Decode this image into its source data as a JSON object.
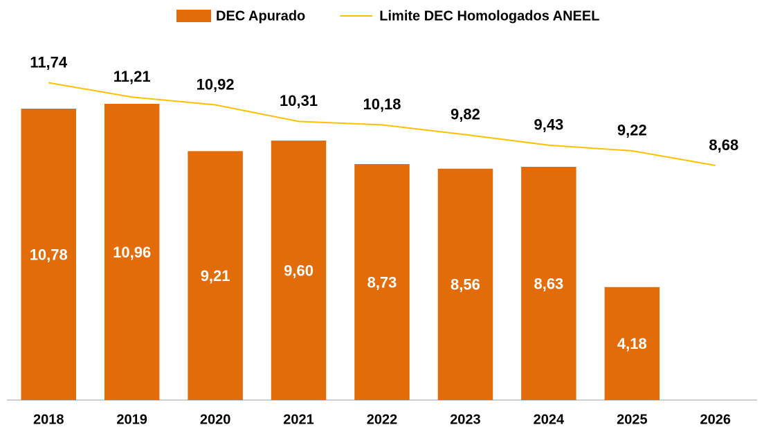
{
  "chart_data": {
    "type": "bar+line",
    "categories": [
      "2018",
      "2019",
      "2020",
      "2021",
      "2022",
      "2023",
      "2024",
      "2025",
      "2026"
    ],
    "series": [
      {
        "name": "DEC Apurado",
        "type": "bar",
        "color": "#e36c0a",
        "values": [
          10.78,
          10.96,
          9.21,
          9.6,
          8.73,
          8.56,
          8.63,
          4.18,
          null
        ],
        "value_labels": [
          "10,78",
          "10,96",
          "9,21",
          "9,60",
          "8,73",
          "8,56",
          "8,63",
          "4,18",
          null
        ]
      },
      {
        "name": "Limite DEC Homologados ANEEL",
        "type": "line",
        "color": "#ffc000",
        "values": [
          11.74,
          11.21,
          10.92,
          10.31,
          10.18,
          9.82,
          9.43,
          9.22,
          8.68
        ],
        "value_labels": [
          "11,74",
          "11,21",
          "10,92",
          "10,31",
          "10,18",
          "9,82",
          "9,43",
          "9,22",
          "8,68"
        ]
      }
    ],
    "ylim": [
      0,
      14.8
    ],
    "legend": "top"
  }
}
